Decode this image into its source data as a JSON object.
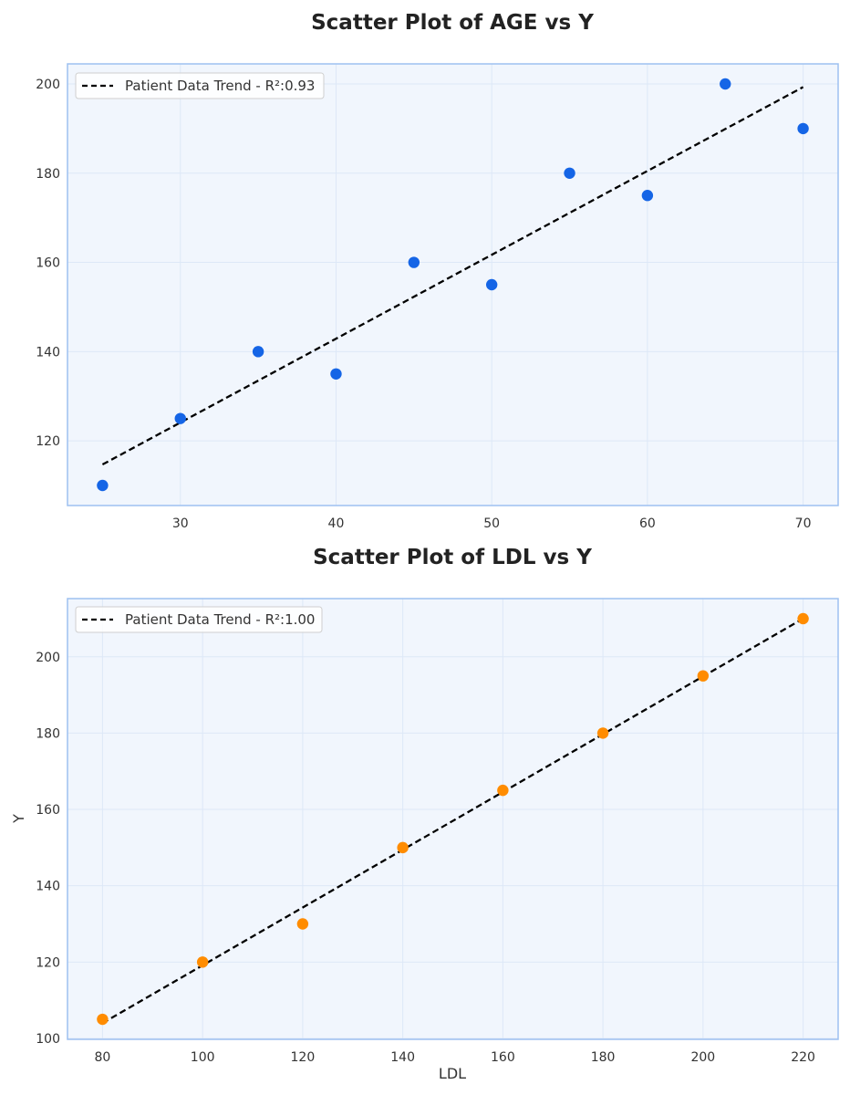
{
  "chart_data": [
    {
      "type": "scatter",
      "title": "Scatter Plot of AGE vs Y",
      "xlabel": "",
      "ylabel": "",
      "xlim": [
        22.75,
        72.25
      ],
      "ylim": [
        105.5,
        204.5
      ],
      "xticks": [
        30,
        40,
        50,
        60,
        70
      ],
      "yticks": [
        120,
        140,
        160,
        180,
        200
      ],
      "grid": true,
      "legend_position": "upper-left",
      "series": [
        {
          "color": "#1565e6",
          "x": [
            25,
            30,
            35,
            40,
            45,
            50,
            55,
            60,
            65,
            70
          ],
          "y": [
            110,
            125,
            140,
            135,
            160,
            155,
            180,
            175,
            200,
            190
          ]
        }
      ],
      "trend": {
        "name": "Patient Data Trend - R²:0.93",
        "style": "dashed",
        "color": "#000000",
        "x": [
          25,
          70
        ],
        "y": [
          114.7,
          199.3
        ]
      }
    },
    {
      "type": "scatter",
      "title": "Scatter Plot of LDL vs Y",
      "xlabel": "LDL",
      "ylabel": "Y",
      "xlim": [
        73,
        227
      ],
      "ylim": [
        99.75,
        215.25
      ],
      "xticks": [
        80,
        100,
        120,
        140,
        160,
        180,
        200,
        220
      ],
      "yticks": [
        100,
        120,
        140,
        160,
        180,
        200
      ],
      "grid": true,
      "legend_position": "upper-left",
      "series": [
        {
          "color": "#ff8c00",
          "x": [
            80,
            100,
            120,
            140,
            160,
            180,
            200,
            220
          ],
          "y": [
            105,
            120,
            130,
            150,
            165,
            180,
            195,
            210
          ]
        }
      ],
      "trend": {
        "name": "Patient Data Trend - R²:1.00",
        "style": "dashed",
        "color": "#000000",
        "x": [
          80,
          220
        ],
        "y": [
          104,
          210
        ]
      }
    }
  ],
  "colors": {
    "plot_background": "#f1f6fd",
    "plot_border": "#9ec1f0",
    "grid": "#dde8f7"
  }
}
